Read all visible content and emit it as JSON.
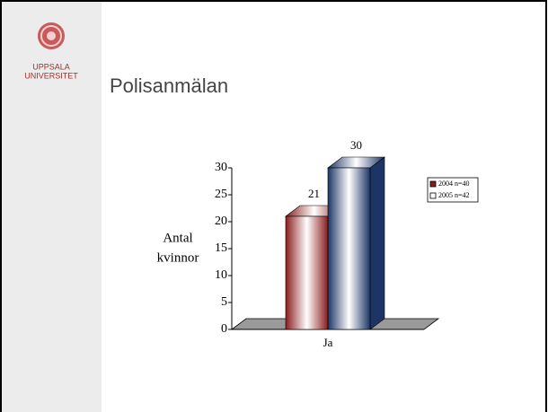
{
  "slide": {
    "logo_lines": [
      "UPPSALA",
      "UNIVERSITET"
    ],
    "title": "Polisanmälan"
  },
  "chart_data": {
    "type": "bar3d",
    "ylabel": [
      "Antal",
      "kvinnor"
    ],
    "categories": [
      "Ja"
    ],
    "series": [
      {
        "name": "2004 n=40",
        "color": "#8b1c1c",
        "values": [
          21
        ]
      },
      {
        "name": "2005 n=42",
        "color": "#1d3566",
        "values": [
          30
        ]
      }
    ],
    "ylim": [
      0,
      30
    ],
    "yticks": [
      0,
      5,
      10,
      15,
      20,
      25,
      30
    ],
    "legend": "right"
  }
}
